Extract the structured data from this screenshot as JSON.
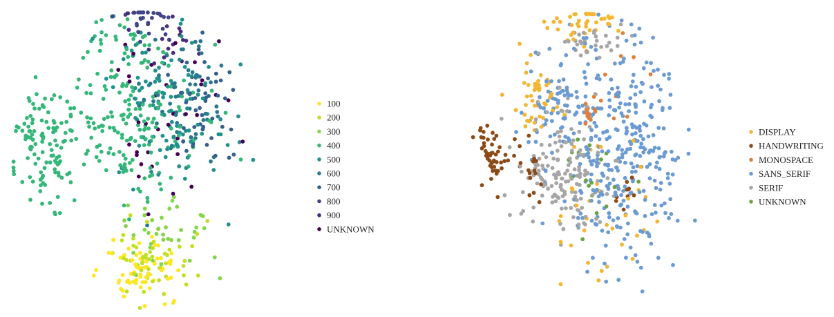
{
  "chart_data": [
    {
      "type": "scatter",
      "title": "",
      "xlabel": "",
      "ylabel": "",
      "axes_visible": false,
      "grid": false,
      "legend_placement": "right",
      "legend": [
        {
          "label": "100",
          "color": "#fde725"
        },
        {
          "label": "200",
          "color": "#c2df23"
        },
        {
          "label": "300",
          "color": "#86d549"
        },
        {
          "label": "400",
          "color": "#35b779"
        },
        {
          "label": "500",
          "color": "#21918c"
        },
        {
          "label": "600",
          "color": "#2a788e"
        },
        {
          "label": "700",
          "color": "#355f8d"
        },
        {
          "label": "800",
          "color": "#414487"
        },
        {
          "label": "900",
          "color": "#472d7b"
        },
        {
          "label": "UNKNOWN",
          "color": "#440154"
        }
      ],
      "clusters": [
        {
          "category": "400",
          "center": [
            -4.2,
            0.4
          ],
          "spread": [
            1.3,
            1.5
          ],
          "count": 120
        },
        {
          "category": "400",
          "center": [
            -0.3,
            0.8
          ],
          "spread": [
            2.6,
            1.6
          ],
          "count": 140
        },
        {
          "category": "500",
          "center": [
            1.3,
            1.4
          ],
          "spread": [
            2.2,
            2.0
          ],
          "count": 110
        },
        {
          "category": "600",
          "center": [
            1.6,
            1.8
          ],
          "spread": [
            1.7,
            1.6
          ],
          "count": 60
        },
        {
          "category": "700",
          "center": [
            2.8,
            1.4
          ],
          "spread": [
            1.4,
            1.5
          ],
          "count": 45
        },
        {
          "category": "800",
          "center": [
            0.2,
            4.1
          ],
          "spread": [
            1.3,
            0.8
          ],
          "count": 30
        },
        {
          "category": "900",
          "center": [
            0.8,
            3.6
          ],
          "spread": [
            1.5,
            1.0
          ],
          "count": 22
        },
        {
          "category": "UNKNOWN",
          "center": [
            0.8,
            1.3
          ],
          "spread": [
            2.9,
            2.6
          ],
          "count": 35
        },
        {
          "category": "100",
          "center": [
            0.0,
            -3.3
          ],
          "spread": [
            1.5,
            0.8
          ],
          "count": 70
        },
        {
          "category": "200",
          "center": [
            0.6,
            -2.9
          ],
          "spread": [
            1.7,
            1.0
          ],
          "count": 50
        },
        {
          "category": "300",
          "center": [
            0.9,
            -2.2
          ],
          "spread": [
            1.9,
            1.1
          ],
          "count": 40
        },
        {
          "category": "400",
          "center": [
            -1.0,
            3.1
          ],
          "spread": [
            1.9,
            1.2
          ],
          "count": 55
        }
      ],
      "xlim": [
        -6,
        6
      ],
      "ylim": [
        -4.5,
        4.5
      ]
    },
    {
      "type": "scatter",
      "title": "",
      "xlabel": "",
      "ylabel": "",
      "axes_visible": false,
      "grid": false,
      "legend_placement": "right",
      "legend": [
        {
          "label": "DISPLAY",
          "color": "#f2b632"
        },
        {
          "label": "HANDWRITING",
          "color": "#8c4a17"
        },
        {
          "label": "MONOSPACE",
          "color": "#e07f3a"
        },
        {
          "label": "SANS_SERIF",
          "color": "#6b9bd2"
        },
        {
          "label": "SERIF",
          "color": "#a6a6a6"
        },
        {
          "label": "UNKNOWN",
          "color": "#6aa341"
        }
      ],
      "clusters": [
        {
          "category": "SANS_SERIF",
          "center": [
            1.7,
            0.2
          ],
          "spread": [
            2.4,
            2.9
          ],
          "count": 330
        },
        {
          "category": "SANS_SERIF",
          "center": [
            -1.3,
            1.5
          ],
          "spread": [
            1.4,
            1.3
          ],
          "count": 70
        },
        {
          "category": "SERIF",
          "center": [
            -1.0,
            -0.3
          ],
          "spread": [
            1.8,
            1.6
          ],
          "count": 160
        },
        {
          "category": "SERIF",
          "center": [
            0.2,
            3.5
          ],
          "spread": [
            1.6,
            0.6
          ],
          "count": 30
        },
        {
          "category": "DISPLAY",
          "center": [
            -2.2,
            1.8
          ],
          "spread": [
            1.0,
            1.0
          ],
          "count": 45
        },
        {
          "category": "DISPLAY",
          "center": [
            0.0,
            4.1
          ],
          "spread": [
            1.4,
            0.5
          ],
          "count": 40
        },
        {
          "category": "DISPLAY",
          "center": [
            1.0,
            -1.5
          ],
          "spread": [
            2.2,
            1.8
          ],
          "count": 35
        },
        {
          "category": "HANDWRITING",
          "center": [
            -4.2,
            0.2
          ],
          "spread": [
            0.5,
            0.6
          ],
          "count": 45
        },
        {
          "category": "HANDWRITING",
          "center": [
            -2.6,
            -0.2
          ],
          "spread": [
            1.1,
            0.9
          ],
          "count": 20
        },
        {
          "category": "HANDWRITING",
          "center": [
            1.9,
            -0.9
          ],
          "spread": [
            0.7,
            0.5
          ],
          "count": 10
        },
        {
          "category": "MONOSPACE",
          "center": [
            0.3,
            1.4
          ],
          "spread": [
            0.3,
            0.6
          ],
          "count": 14
        },
        {
          "category": "MONOSPACE",
          "center": [
            1.4,
            2.0
          ],
          "spread": [
            2.0,
            1.8
          ],
          "count": 12
        },
        {
          "category": "UNKNOWN",
          "center": [
            0.6,
            -0.5
          ],
          "spread": [
            1.8,
            1.6
          ],
          "count": 18
        }
      ],
      "xlim": [
        -6,
        6
      ],
      "ylim": [
        -4.5,
        4.5
      ]
    }
  ]
}
